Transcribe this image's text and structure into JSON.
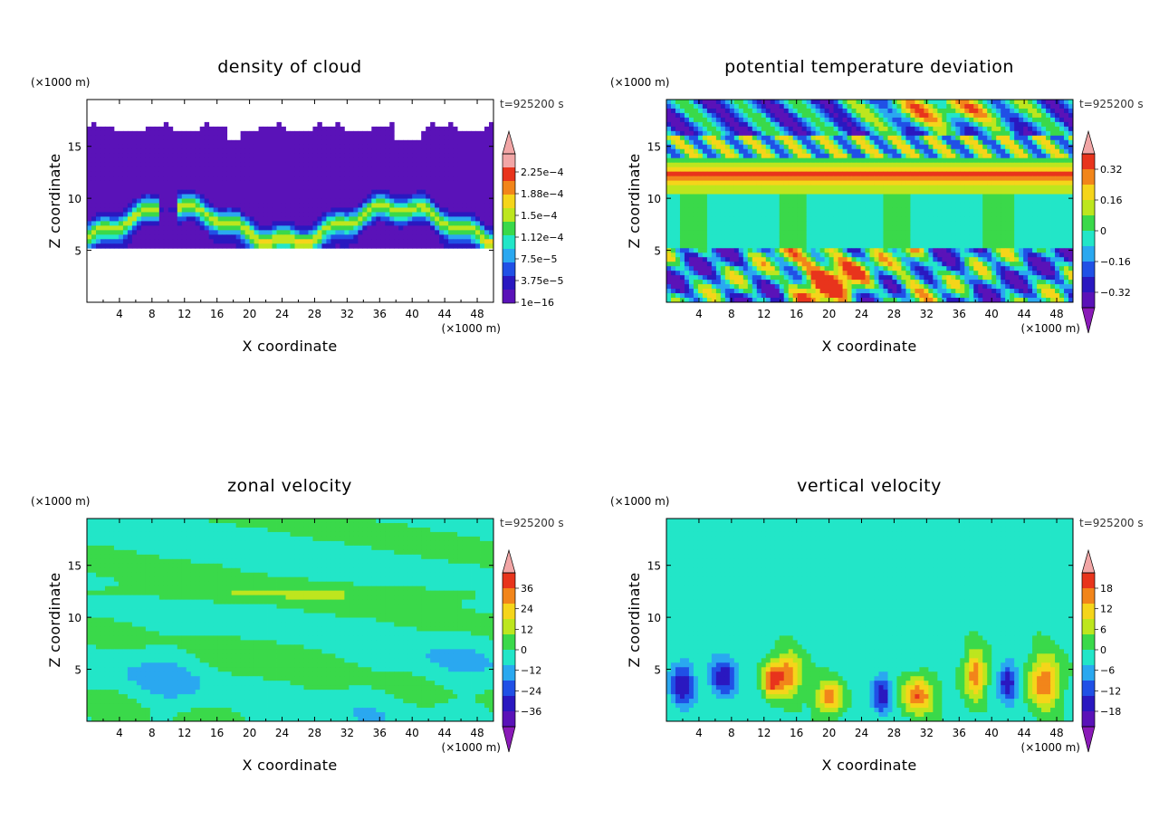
{
  "chart_data": [
    {
      "type": "heatmap",
      "title": "density of cloud",
      "xlabel": "X coordinate",
      "ylabel": "Z coordinate",
      "x_unit": "(×1000 m)",
      "y_unit": "(×1000 m)",
      "time_label": "t=925200 s",
      "xlim": [
        0,
        50
      ],
      "ylim": [
        0,
        19.5
      ],
      "x_ticks": [
        "4",
        "8",
        "12",
        "16",
        "20",
        "24",
        "28",
        "32",
        "36",
        "40",
        "44",
        "48"
      ],
      "y_ticks": [
        "5",
        "10",
        "15"
      ],
      "colorbar_labels": [
        "2.25e−4",
        "1.88e−4",
        "1.5e−4",
        "1.12e−4",
        "7.5e−5",
        "3.75e−5",
        "1e−16"
      ],
      "colorbar_colors": [
        "#f2a6a6",
        "#e8341c",
        "#f2851a",
        "#f5d51a",
        "#bde61e",
        "#3ad94a",
        "#22e6c8",
        "#2aa8f0",
        "#2050e6",
        "#2a18c0",
        "#5a12b8"
      ],
      "colorbar_extend": "upper",
      "field": "cloud-layer"
    },
    {
      "type": "heatmap",
      "title": "potential temperature deviation",
      "xlabel": "X coordinate",
      "ylabel": "Z coordinate",
      "x_unit": "(×1000 m)",
      "y_unit": "(×1000 m)",
      "time_label": "t=925200 s",
      "xlim": [
        0,
        50
      ],
      "ylim": [
        0,
        19.5
      ],
      "x_ticks": [
        "4",
        "8",
        "12",
        "16",
        "20",
        "24",
        "28",
        "32",
        "36",
        "40",
        "44",
        "48"
      ],
      "y_ticks": [
        "5",
        "10",
        "15"
      ],
      "colorbar_labels": [
        "0.32",
        "0.16",
        "0",
        "−0.16",
        "−0.32"
      ],
      "colorbar_colors": [
        "#e8341c",
        "#f2851a",
        "#f5d51a",
        "#bde61e",
        "#3ad94a",
        "#22e6c8",
        "#2aa8f0",
        "#2050e6",
        "#2a18c0",
        "#5a12b8"
      ],
      "colorbar_extend": "both",
      "field": "theta"
    },
    {
      "type": "heatmap",
      "title": "zonal velocity",
      "xlabel": "X coordinate",
      "ylabel": "Z coordinate",
      "x_unit": "(×1000 m)",
      "y_unit": "(×1000 m)",
      "time_label": "t=925200 s",
      "xlim": [
        0,
        50
      ],
      "ylim": [
        0,
        19.5
      ],
      "x_ticks": [
        "4",
        "8",
        "12",
        "16",
        "20",
        "24",
        "28",
        "32",
        "36",
        "40",
        "44",
        "48"
      ],
      "y_ticks": [
        "5",
        "10",
        "15"
      ],
      "colorbar_labels": [
        "36",
        "24",
        "12",
        "0",
        "−12",
        "−24",
        "−36"
      ],
      "colorbar_colors": [
        "#e8341c",
        "#f2851a",
        "#f5d51a",
        "#bde61e",
        "#3ad94a",
        "#22e6c8",
        "#2aa8f0",
        "#2050e6",
        "#2a18c0",
        "#5a12b8"
      ],
      "colorbar_extend": "both",
      "field": "zonal"
    },
    {
      "type": "heatmap",
      "title": "vertical velocity",
      "xlabel": "X coordinate",
      "ylabel": "Z coordinate",
      "x_unit": "(×1000 m)",
      "y_unit": "(×1000 m)",
      "time_label": "t=925200 s",
      "xlim": [
        0,
        50
      ],
      "ylim": [
        0,
        19.5
      ],
      "x_ticks": [
        "4",
        "8",
        "12",
        "16",
        "20",
        "24",
        "28",
        "32",
        "36",
        "40",
        "44",
        "48"
      ],
      "y_ticks": [
        "5",
        "10",
        "15"
      ],
      "colorbar_labels": [
        "18",
        "12",
        "6",
        "0",
        "−6",
        "−12",
        "−18"
      ],
      "colorbar_colors": [
        "#e8341c",
        "#f2851a",
        "#f5d51a",
        "#bde61e",
        "#3ad94a",
        "#22e6c8",
        "#2aa8f0",
        "#2050e6",
        "#2a18c0",
        "#5a12b8"
      ],
      "colorbar_extend": "both",
      "field": "vertical"
    }
  ]
}
